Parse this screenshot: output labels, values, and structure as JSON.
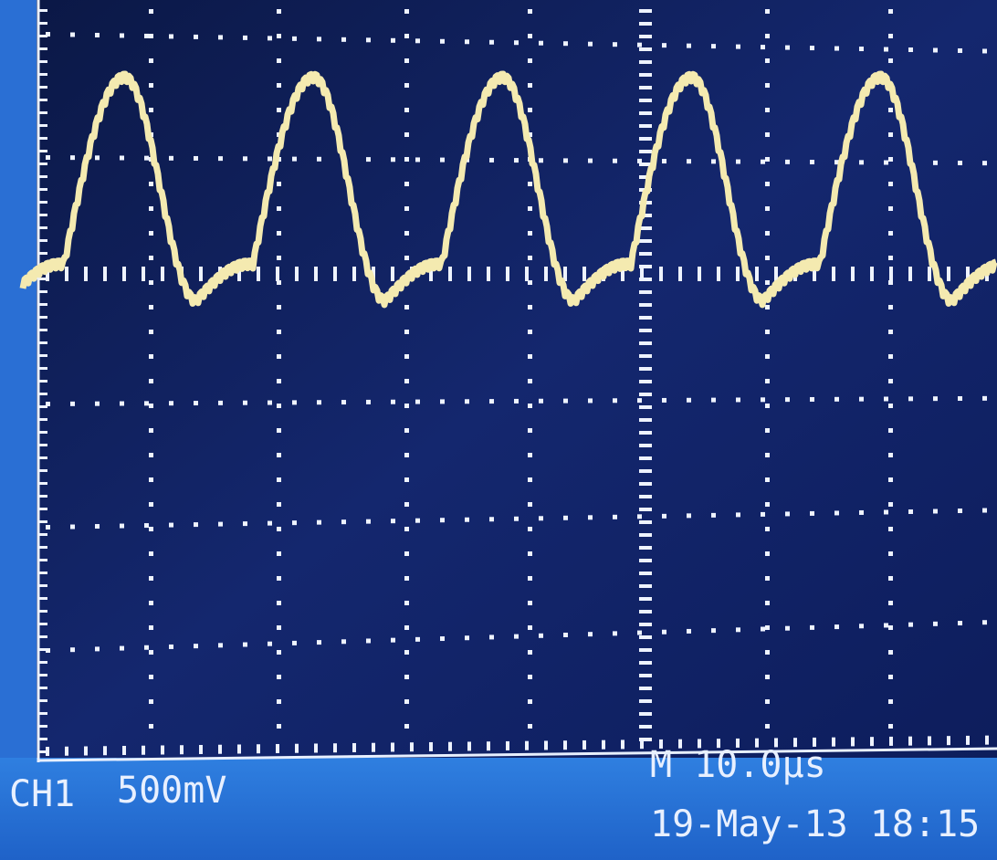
{
  "status_bar": {
    "channel": "CH1",
    "volts_per_div": "500mV",
    "timebase": "M 10.0µs",
    "date_time": "19-May-13 18:15"
  }
}
